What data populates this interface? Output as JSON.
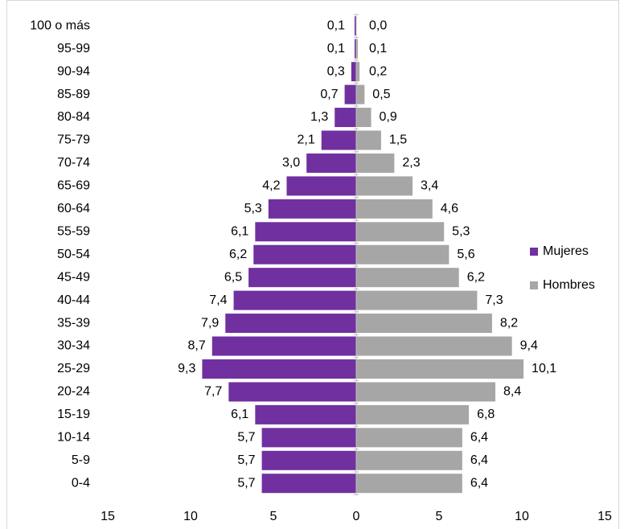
{
  "chart_data": {
    "type": "pyramid",
    "categories": [
      "100 o más",
      "95-99",
      "90-94",
      "85-89",
      "80-84",
      "75-79",
      "70-74",
      "65-69",
      "60-64",
      "55-59",
      "50-54",
      "45-49",
      "40-44",
      "35-39",
      "30-34",
      "25-29",
      "20-24",
      "15-19",
      "10-14",
      "5-9",
      "0-4"
    ],
    "series": [
      {
        "name": "Mujeres",
        "color": "#7030a0",
        "side": "left",
        "values": [
          0.1,
          0.1,
          0.3,
          0.7,
          1.3,
          2.1,
          3.0,
          4.2,
          5.3,
          6.1,
          6.2,
          6.5,
          7.4,
          7.9,
          8.7,
          9.3,
          7.7,
          6.1,
          5.7,
          5.7,
          5.7
        ],
        "value_labels": [
          "0,1",
          "0,1",
          "0,3",
          "0,7",
          "1,3",
          "2,1",
          "3,0",
          "4,2",
          "5,3",
          "6,1",
          "6,2",
          "6,5",
          "7,4",
          "7,9",
          "8,7",
          "9,3",
          "7,7",
          "6,1",
          "5,7",
          "5,7",
          "5,7"
        ]
      },
      {
        "name": "Hombres",
        "color": "#a6a6a6",
        "side": "right",
        "values": [
          0.0,
          0.1,
          0.2,
          0.5,
          0.9,
          1.5,
          2.3,
          3.4,
          4.6,
          5.3,
          5.6,
          6.2,
          7.3,
          8.2,
          9.4,
          10.1,
          8.4,
          6.8,
          6.4,
          6.4,
          6.4
        ],
        "value_labels": [
          "0,0",
          "0,1",
          "0,2",
          "0,5",
          "0,9",
          "1,5",
          "2,3",
          "3,4",
          "4,6",
          "5,3",
          "5,6",
          "6,2",
          "7,3",
          "8,2",
          "9,4",
          "10,1",
          "8,4",
          "6,8",
          "6,4",
          "6,4",
          "6,4"
        ]
      }
    ],
    "xlim": [
      -15,
      15
    ],
    "xticks": [
      {
        "value": -15,
        "label": "15"
      },
      {
        "value": -10,
        "label": "10"
      },
      {
        "value": -5,
        "label": "5"
      },
      0,
      5,
      10,
      15
    ],
    "legend": "right"
  }
}
